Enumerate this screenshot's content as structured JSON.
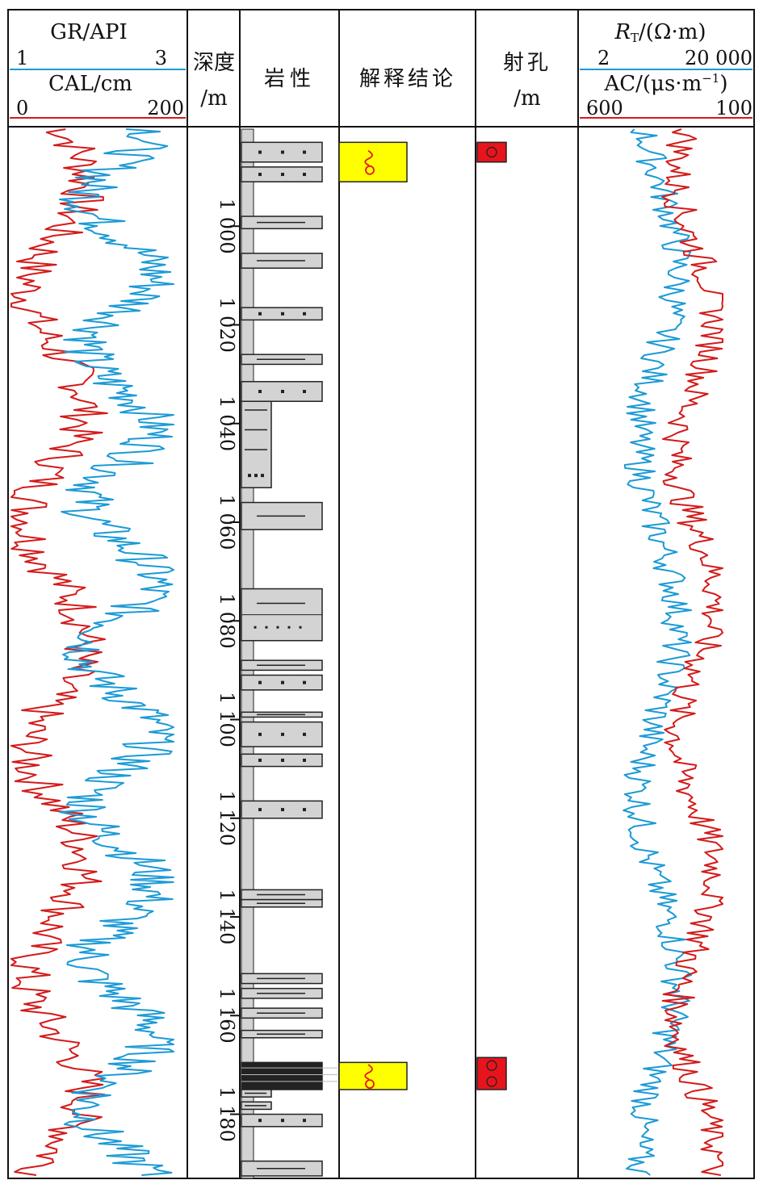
{
  "chart_data": {
    "type": "well-log",
    "depth_track": {
      "title": "深度",
      "unit": "/m",
      "range": [
        980,
        1193
      ],
      "ticks": [
        1000,
        1020,
        1040,
        1060,
        1080,
        1100,
        1120,
        1140,
        1160,
        1180
      ],
      "tick_labels": [
        "1 000",
        "1 020",
        "1 040",
        "1 060",
        "1 080",
        "1 100",
        "1 120",
        "1 140",
        "1 160",
        "1 180"
      ]
    },
    "track1": {
      "curves": [
        {
          "name": "GR/API",
          "min_label": "1",
          "max_label": "3",
          "xlim": [
            1,
            3
          ],
          "color": "#1b9ad6"
        },
        {
          "name": "CAL/cm",
          "min_label": "0",
          "max_label": "200",
          "xlim": [
            0,
            200
          ],
          "color": "#d41a1a"
        }
      ]
    },
    "lithology": {
      "title": "岩性",
      "beds": [
        {
          "top": 983,
          "bottom": 987,
          "sym": "dots"
        },
        {
          "top": 988,
          "bottom": 991,
          "sym": "dots"
        },
        {
          "top": 998,
          "bottom": 1000.5,
          "sym": "dash"
        },
        {
          "top": 1005.5,
          "bottom": 1008.5,
          "sym": "dash"
        },
        {
          "top": 1016.5,
          "bottom": 1019,
          "sym": "dots"
        },
        {
          "top": 1026,
          "bottom": 1028,
          "sym": "dash"
        },
        {
          "top": 1031.5,
          "bottom": 1035.5,
          "sym": "dots"
        },
        {
          "top": 1035.5,
          "bottom": 1053,
          "sym": "mixed-narrow"
        },
        {
          "top": 1056,
          "bottom": 1061.5,
          "sym": "dash"
        },
        {
          "top": 1073.5,
          "bottom": 1084,
          "sym": "dash-dots"
        },
        {
          "top": 1088,
          "bottom": 1090,
          "sym": "dash"
        },
        {
          "top": 1091,
          "bottom": 1094,
          "sym": "dots"
        },
        {
          "top": 1098.5,
          "bottom": 1099.5,
          "sym": "dash"
        },
        {
          "top": 1100.5,
          "bottom": 1105.5,
          "sym": "dots"
        },
        {
          "top": 1107,
          "bottom": 1109.5,
          "sym": "dots"
        },
        {
          "top": 1116.5,
          "bottom": 1120,
          "sym": "dots"
        },
        {
          "top": 1134.5,
          "bottom": 1136.5,
          "sym": "dash"
        },
        {
          "top": 1136.5,
          "bottom": 1138,
          "sym": "dash"
        },
        {
          "top": 1151.5,
          "bottom": 1153.5,
          "sym": "dash"
        },
        {
          "top": 1154.5,
          "bottom": 1156.5,
          "sym": "dash"
        },
        {
          "top": 1158.5,
          "bottom": 1160.5,
          "sym": "dash"
        },
        {
          "top": 1163,
          "bottom": 1164.5,
          "sym": "dash"
        },
        {
          "top": 1169.5,
          "bottom": 1175,
          "sym": "coal"
        },
        {
          "top": 1175,
          "bottom": 1176.5,
          "sym": "dash-narrow"
        },
        {
          "top": 1177.5,
          "bottom": 1179,
          "sym": "dash-narrow"
        },
        {
          "top": 1180,
          "bottom": 1182.5,
          "sym": "dots"
        },
        {
          "top": 1189.5,
          "bottom": 1192.5,
          "sym": "dash"
        }
      ]
    },
    "interpretation": {
      "title": "解释结论",
      "zones": [
        {
          "top": 983,
          "bottom": 991,
          "color": "#ffff00",
          "symbol": "oil-gas"
        },
        {
          "top": 1169.5,
          "bottom": 1175,
          "color": "#ffff00",
          "symbol": "oil-gas"
        }
      ]
    },
    "perforation": {
      "title": "射孔",
      "unit": "/m",
      "intervals": [
        {
          "top": 983,
          "bottom": 987,
          "color": "#e8141c",
          "circles": 1
        },
        {
          "top": 1168.5,
          "bottom": 1175,
          "color": "#e8141c",
          "circles": 2
        }
      ]
    },
    "track2": {
      "curves": [
        {
          "name": "RT/(Ω·m)",
          "min_label": "2",
          "max_label": "20 000",
          "xlim": [
            2,
            20000
          ],
          "scale": "log",
          "color": "#1b9ad6"
        },
        {
          "name": "AC/(μs·m⁻¹)",
          "min_label": "600",
          "max_label": "100",
          "xlim": [
            600,
            100
          ],
          "color": "#d41a1a"
        }
      ]
    }
  }
}
